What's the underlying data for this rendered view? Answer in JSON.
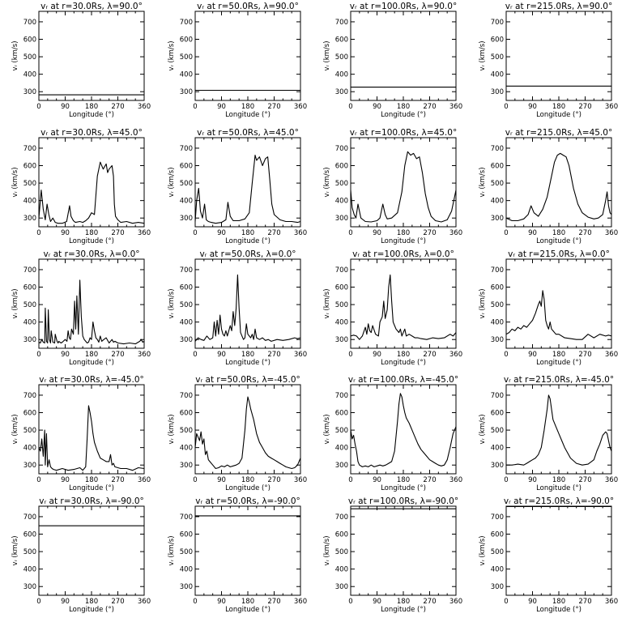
{
  "figure": {
    "rows": 5,
    "cols": 4,
    "xlabel": "Longitude  (°)",
    "ylabel": "vᵣ  (km/s)",
    "xlim": [
      0,
      360
    ],
    "ylim": [
      250,
      760
    ],
    "xticks": [
      "0",
      "90",
      "180",
      "270",
      "360"
    ],
    "yticks": [
      "300",
      "400",
      "500",
      "600",
      "700"
    ],
    "line_color": "#000000"
  },
  "chart_data": [
    {
      "type": "line",
      "title": "vᵣ at r=30.0Rs, λ=90.0°",
      "x": [
        0,
        360
      ],
      "y": [
        282,
        282
      ]
    },
    {
      "type": "line",
      "title": "vᵣ at r=50.0Rs, λ=90.0°",
      "x": [
        0,
        360
      ],
      "y": [
        308,
        308
      ]
    },
    {
      "type": "line",
      "title": "vᵣ at r=100.0Rs, λ=90.0°",
      "x": [
        0,
        360
      ],
      "y": [
        326,
        326
      ]
    },
    {
      "type": "line",
      "title": "vᵣ at r=215.0Rs, λ=90.0°",
      "x": [
        0,
        360
      ],
      "y": [
        332,
        332
      ]
    },
    {
      "type": "line",
      "title": "vᵣ at r=30.0Rs, λ=45.0°",
      "x": [
        0,
        8,
        15,
        22,
        28,
        34,
        40,
        48,
        56,
        65,
        80,
        95,
        105,
        110,
        118,
        125,
        140,
        150,
        160,
        170,
        180,
        190,
        200,
        210,
        220,
        230,
        235,
        240,
        250,
        255,
        258,
        262,
        270,
        280,
        300,
        320,
        340,
        360
      ],
      "y": [
        300,
        460,
        350,
        290,
        380,
        320,
        280,
        300,
        275,
        270,
        270,
        280,
        370,
        310,
        285,
        275,
        280,
        275,
        285,
        300,
        330,
        320,
        540,
        620,
        580,
        610,
        560,
        580,
        600,
        540,
        380,
        310,
        290,
        275,
        280,
        270,
        275,
        270
      ]
    },
    {
      "type": "line",
      "title": "vᵣ at r=50.0Rs, λ=45.0°",
      "x": [
        0,
        5,
        12,
        18,
        25,
        32,
        38,
        45,
        55,
        70,
        90,
        105,
        112,
        120,
        130,
        150,
        170,
        185,
        195,
        205,
        210,
        220,
        230,
        240,
        248,
        255,
        262,
        270,
        290,
        310,
        330,
        350,
        360
      ],
      "y": [
        280,
        400,
        470,
        340,
        300,
        380,
        290,
        280,
        275,
        270,
        275,
        290,
        390,
        310,
        285,
        285,
        295,
        330,
        500,
        660,
        630,
        650,
        600,
        640,
        650,
        520,
        380,
        320,
        290,
        280,
        280,
        275,
        280
      ]
    },
    {
      "type": "line",
      "title": "vᵣ at r=100.0Rs, λ=45.0°",
      "x": [
        0,
        5,
        12,
        18,
        25,
        35,
        50,
        70,
        90,
        100,
        110,
        118,
        125,
        140,
        160,
        175,
        185,
        195,
        205,
        215,
        225,
        235,
        245,
        255,
        265,
        275,
        290,
        310,
        330,
        345,
        355,
        360
      ],
      "y": [
        460,
        360,
        320,
        300,
        380,
        300,
        280,
        278,
        285,
        300,
        380,
        320,
        295,
        300,
        330,
        450,
        600,
        680,
        660,
        670,
        640,
        650,
        560,
        440,
        360,
        310,
        285,
        278,
        290,
        340,
        420,
        460
      ]
    },
    {
      "type": "line",
      "title": "vᵣ at r=215.0Rs, λ=45.0°",
      "x": [
        0,
        20,
        40,
        60,
        75,
        85,
        95,
        110,
        125,
        140,
        155,
        165,
        175,
        185,
        195,
        205,
        215,
        230,
        245,
        260,
        280,
        300,
        315,
        330,
        340,
        345,
        350,
        355,
        360
      ],
      "y": [
        300,
        285,
        285,
        295,
        320,
        370,
        330,
        310,
        350,
        420,
        540,
        620,
        660,
        670,
        660,
        650,
        600,
        470,
        380,
        330,
        305,
        295,
        300,
        320,
        400,
        450,
        370,
        330,
        320
      ]
    },
    {
      "type": "line",
      "title": "vᵣ at r=30.0Rs, λ=0.0°",
      "x": [
        0,
        5,
        10,
        15,
        20,
        22,
        26,
        30,
        32,
        36,
        40,
        42,
        48,
        54,
        56,
        62,
        66,
        68,
        72,
        76,
        80,
        90,
        96,
        100,
        104,
        108,
        112,
        118,
        122,
        126,
        130,
        135,
        140,
        145,
        150,
        155,
        160,
        165,
        170,
        175,
        180,
        185,
        190,
        195,
        200,
        205,
        210,
        215,
        222,
        230,
        240,
        250,
        255,
        260,
        270,
        290,
        310,
        330,
        345,
        350,
        355,
        360
      ],
      "y": [
        285,
        280,
        300,
        285,
        280,
        480,
        290,
        280,
        470,
        300,
        280,
        350,
        285,
        280,
        330,
        290,
        280,
        290,
        285,
        280,
        285,
        300,
        290,
        350,
        310,
        300,
        360,
        330,
        520,
        360,
        550,
        330,
        640,
        430,
        320,
        300,
        290,
        280,
        285,
        310,
        300,
        400,
        350,
        310,
        300,
        285,
        320,
        290,
        300,
        310,
        280,
        300,
        285,
        290,
        280,
        275,
        280,
        275,
        290,
        300,
        285,
        290
      ]
    },
    {
      "type": "line",
      "title": "vᵣ at r=50.0Rs, λ=0.0°",
      "x": [
        0,
        10,
        20,
        30,
        40,
        50,
        60,
        65,
        70,
        75,
        80,
        85,
        90,
        95,
        100,
        105,
        110,
        120,
        125,
        130,
        135,
        140,
        145,
        150,
        155,
        160,
        165,
        170,
        175,
        180,
        185,
        190,
        195,
        200,
        205,
        210,
        220,
        230,
        240,
        250,
        260,
        280,
        300,
        320,
        340,
        350,
        360
      ],
      "y": [
        290,
        310,
        300,
        295,
        320,
        300,
        310,
        400,
        320,
        410,
        330,
        440,
        360,
        330,
        320,
        350,
        320,
        380,
        350,
        460,
        380,
        480,
        670,
        480,
        340,
        320,
        300,
        310,
        390,
        330,
        320,
        310,
        330,
        300,
        360,
        310,
        300,
        310,
        295,
        300,
        290,
        300,
        295,
        300,
        310,
        305,
        310
      ]
    },
    {
      "type": "line",
      "title": "vᵣ at r=100.0Rs, λ=0.0°",
      "x": [
        0,
        10,
        20,
        30,
        40,
        50,
        55,
        60,
        65,
        70,
        75,
        85,
        95,
        100,
        108,
        113,
        118,
        125,
        130,
        135,
        140,
        145,
        150,
        155,
        160,
        165,
        170,
        175,
        180,
        185,
        190,
        200,
        210,
        220,
        230,
        240,
        260,
        280,
        300,
        320,
        340,
        350,
        360
      ],
      "y": [
        320,
        325,
        320,
        300,
        320,
        370,
        330,
        390,
        350,
        340,
        380,
        330,
        320,
        400,
        430,
        520,
        420,
        470,
        600,
        670,
        520,
        400,
        380,
        360,
        350,
        340,
        360,
        320,
        340,
        360,
        320,
        330,
        320,
        310,
        310,
        305,
        300,
        310,
        305,
        310,
        330,
        320,
        340
      ]
    },
    {
      "type": "line",
      "title": "vᵣ at r=215.0Rs, λ=0.0°",
      "x": [
        0,
        10,
        20,
        30,
        40,
        50,
        60,
        70,
        80,
        90,
        100,
        110,
        115,
        120,
        125,
        130,
        135,
        140,
        145,
        150,
        155,
        160,
        170,
        180,
        200,
        220,
        240,
        260,
        280,
        300,
        320,
        340,
        350,
        360
      ],
      "y": [
        330,
        340,
        360,
        350,
        370,
        360,
        380,
        370,
        390,
        410,
        450,
        500,
        520,
        490,
        580,
        530,
        410,
        380,
        360,
        400,
        360,
        350,
        330,
        330,
        310,
        305,
        300,
        300,
        330,
        310,
        330,
        320,
        325,
        320
      ]
    },
    {
      "type": "line",
      "title": "vᵣ at r=30.0Rs, λ=-45.0°",
      "x": [
        0,
        5,
        10,
        15,
        20,
        22,
        26,
        30,
        35,
        40,
        45,
        50,
        60,
        80,
        100,
        120,
        140,
        150,
        160,
        165,
        170,
        175,
        180,
        185,
        190,
        200,
        210,
        220,
        230,
        240,
        245,
        250,
        255,
        260,
        270,
        280,
        300,
        320,
        340,
        360
      ],
      "y": [
        400,
        380,
        450,
        350,
        500,
        300,
        480,
        290,
        330,
        290,
        280,
        275,
        270,
        280,
        270,
        275,
        285,
        270,
        290,
        450,
        640,
        600,
        550,
        480,
        430,
        380,
        340,
        330,
        320,
        320,
        360,
        300,
        310,
        290,
        285,
        280,
        280,
        270,
        285,
        280
      ]
    },
    {
      "type": "line",
      "title": "vᵣ at r=50.0Rs, λ=-45.0°",
      "x": [
        0,
        5,
        10,
        15,
        20,
        25,
        30,
        35,
        40,
        45,
        50,
        60,
        70,
        80,
        90,
        100,
        110,
        120,
        130,
        140,
        150,
        160,
        170,
        175,
        180,
        185,
        190,
        200,
        210,
        220,
        230,
        240,
        250,
        260,
        270,
        280,
        290,
        300,
        310,
        320,
        330,
        340,
        350,
        360
      ],
      "y": [
        400,
        480,
        460,
        440,
        490,
        420,
        450,
        360,
        380,
        330,
        320,
        300,
        280,
        285,
        295,
        290,
        300,
        290,
        295,
        300,
        310,
        340,
        500,
        620,
        690,
        660,
        620,
        560,
        480,
        430,
        400,
        370,
        350,
        340,
        330,
        320,
        310,
        300,
        290,
        285,
        280,
        285,
        300,
        340
      ]
    },
    {
      "type": "line",
      "title": "vᵣ at r=100.0Rs, λ=-45.0°",
      "x": [
        0,
        5,
        10,
        15,
        20,
        25,
        30,
        40,
        50,
        60,
        70,
        80,
        90,
        100,
        110,
        120,
        130,
        140,
        150,
        160,
        165,
        170,
        175,
        180,
        185,
        190,
        200,
        210,
        220,
        230,
        240,
        250,
        260,
        270,
        280,
        290,
        300,
        310,
        320,
        330,
        340,
        350,
        360
      ],
      "y": [
        500,
        450,
        470,
        420,
        380,
        320,
        300,
        290,
        295,
        290,
        300,
        290,
        295,
        300,
        295,
        300,
        310,
        320,
        380,
        550,
        650,
        710,
        690,
        640,
        600,
        570,
        540,
        500,
        460,
        420,
        390,
        370,
        350,
        330,
        320,
        310,
        300,
        295,
        300,
        330,
        400,
        480,
        520
      ]
    },
    {
      "type": "line",
      "title": "vᵣ at r=215.0Rs, λ=-45.0°",
      "x": [
        0,
        20,
        40,
        60,
        70,
        80,
        90,
        100,
        110,
        120,
        130,
        140,
        145,
        150,
        155,
        160,
        170,
        180,
        190,
        200,
        210,
        220,
        240,
        260,
        280,
        300,
        310,
        320,
        330,
        340,
        345,
        350,
        355,
        360
      ],
      "y": [
        300,
        300,
        305,
        300,
        310,
        320,
        330,
        340,
        360,
        400,
        500,
        620,
        700,
        680,
        620,
        560,
        520,
        480,
        440,
        400,
        370,
        340,
        310,
        300,
        305,
        330,
        380,
        420,
        470,
        490,
        480,
        440,
        400,
        380
      ]
    },
    {
      "type": "line",
      "title": "vᵣ at r=30.0Rs, λ=-90.0°",
      "x": [
        0,
        360
      ],
      "y": [
        648,
        648
      ]
    },
    {
      "type": "line",
      "title": "vᵣ at r=50.0Rs, λ=-90.0°",
      "x": [
        0,
        360
      ],
      "y": [
        705,
        705
      ]
    },
    {
      "type": "line",
      "title": "vᵣ at r=100.0Rs, λ=-90.0°",
      "x": [
        0,
        360
      ],
      "y": [
        745,
        745
      ]
    },
    {
      "type": "line",
      "title": "vᵣ at r=215.0Rs, λ=-90.0°",
      "x": [
        0,
        360
      ],
      "y": [
        758,
        758
      ]
    }
  ]
}
